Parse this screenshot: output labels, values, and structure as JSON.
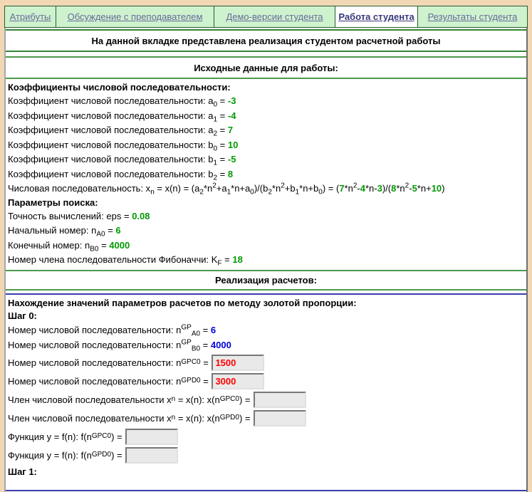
{
  "tabs": [
    {
      "label": "Атрибуты",
      "active": false
    },
    {
      "label": "Обсуждение с преподавателем",
      "active": false
    },
    {
      "label": "Демо-версии студента",
      "active": false
    },
    {
      "label": "Работа студента",
      "active": true
    },
    {
      "label": "Результаты студента",
      "active": false
    }
  ],
  "sections": {
    "intro_header": "На данной вкладке представлена реализация студентом расчетной работы",
    "inputs_header": "Исходные данные для работы:",
    "calc_header": "Реализация расчетов:"
  },
  "colors": {
    "page_frame": "#f1d7b4",
    "tab_background": "#cdf2cd",
    "tab_border": "#2a5c2a",
    "tab_link": "#6a6a9d",
    "rule_green": "#368336",
    "rule_blue": "#3a3aae",
    "value_green": "#009900",
    "value_blue": "#0000dd",
    "value_red": "#ff0000"
  },
  "initial_lines": [
    {
      "name": "coefficients-heading",
      "bold": true,
      "segments": [
        {
          "text": "Коэффициенты числовой последовательности:"
        }
      ]
    },
    {
      "name": "coeff-a0-line",
      "segments": [
        {
          "text": "Коэффициент числовой последовательности: a"
        },
        {
          "sub": "0"
        },
        {
          "text": " = "
        },
        {
          "val": "-3",
          "color": "green",
          "name": "coeff-a0-value"
        }
      ]
    },
    {
      "name": "coeff-a1-line",
      "segments": [
        {
          "text": "Коэффициент числовой последовательности: a"
        },
        {
          "sub": "1"
        },
        {
          "text": " = "
        },
        {
          "val": "-4",
          "color": "green",
          "name": "coeff-a1-value"
        }
      ]
    },
    {
      "name": "coeff-a2-line",
      "segments": [
        {
          "text": "Коэффициент числовой последовательности: a"
        },
        {
          "sub": "2"
        },
        {
          "text": " = "
        },
        {
          "val": "7",
          "color": "green",
          "name": "coeff-a2-value"
        }
      ]
    },
    {
      "name": "coeff-b0-line",
      "segments": [
        {
          "text": "Коэффициент числовой последовательности: b"
        },
        {
          "sub": "0"
        },
        {
          "text": " = "
        },
        {
          "val": "10",
          "color": "green",
          "name": "coeff-b0-value"
        }
      ]
    },
    {
      "name": "coeff-b1-line",
      "segments": [
        {
          "text": "Коэффициент числовой последовательности: b"
        },
        {
          "sub": "1"
        },
        {
          "text": " = "
        },
        {
          "val": "-5",
          "color": "green",
          "name": "coeff-b1-value"
        }
      ]
    },
    {
      "name": "coeff-b2-line",
      "segments": [
        {
          "text": "Коэффициент числовой последовательности: b"
        },
        {
          "sub": "2"
        },
        {
          "text": " = "
        },
        {
          "val": "8",
          "color": "green",
          "name": "coeff-b2-value"
        }
      ]
    },
    {
      "name": "sequence-formula-line",
      "segments": [
        {
          "text": "Числовая последовательность: x"
        },
        {
          "sub": "n"
        },
        {
          "text": " = x(n) = (a"
        },
        {
          "sub": "2"
        },
        {
          "text": "*n"
        },
        {
          "sup": "2"
        },
        {
          "text": "+a"
        },
        {
          "sub": "1"
        },
        {
          "text": "*n+a"
        },
        {
          "sub": "0"
        },
        {
          "text": ")/(b"
        },
        {
          "sub": "2"
        },
        {
          "text": "*n"
        },
        {
          "sup": "2"
        },
        {
          "text": "+b"
        },
        {
          "sub": "1"
        },
        {
          "text": "*n+b"
        },
        {
          "sub": "0"
        },
        {
          "text": ") = ("
        },
        {
          "val": "7",
          "color": "green",
          "name": "numerator-n2-coeff"
        },
        {
          "text": "*n"
        },
        {
          "sup": "2"
        },
        {
          "text": "-"
        },
        {
          "val": "4",
          "color": "green",
          "name": "numerator-n-coeff"
        },
        {
          "text": "*n-"
        },
        {
          "val": "3",
          "color": "green",
          "name": "numerator-const"
        },
        {
          "text": ")/("
        },
        {
          "val": "8",
          "color": "green",
          "name": "denominator-n2-coeff"
        },
        {
          "text": "*n"
        },
        {
          "sup": "2"
        },
        {
          "text": "-"
        },
        {
          "val": "5",
          "color": "green",
          "name": "denominator-n-coeff"
        },
        {
          "text": "*n+"
        },
        {
          "val": "10",
          "color": "green",
          "name": "denominator-const"
        },
        {
          "text": ")"
        }
      ]
    },
    {
      "name": "search-params-heading",
      "bold": true,
      "segments": [
        {
          "text": "Параметры поиска:"
        }
      ]
    },
    {
      "name": "eps-line",
      "segments": [
        {
          "text": "Точность вычислений: eps = "
        },
        {
          "val": "0.08",
          "color": "green",
          "name": "eps-value"
        }
      ]
    },
    {
      "name": "start-number-line",
      "segments": [
        {
          "text": "Начальный номер: n"
        },
        {
          "sub": "A0"
        },
        {
          "text": " = "
        },
        {
          "val": "6",
          "color": "green",
          "name": "n-a0-value"
        }
      ]
    },
    {
      "name": "end-number-line",
      "segments": [
        {
          "text": "Конечный номер: n"
        },
        {
          "sub": "B0"
        },
        {
          "text": " = "
        },
        {
          "val": "4000",
          "color": "green",
          "name": "n-b0-value"
        }
      ]
    },
    {
      "name": "fibonacci-number-line",
      "segments": [
        {
          "text": "Номер члена последовательности Фибоначчи: K"
        },
        {
          "sub": "F"
        },
        {
          "text": " = "
        },
        {
          "val": "18",
          "color": "green",
          "name": "k-f-value"
        }
      ]
    }
  ],
  "step_lines": [
    {
      "name": "golden-ratio-heading",
      "bold": true,
      "segments": [
        {
          "text": "Нахождение значений параметров расчетов по методу золотой пропорции:"
        }
      ]
    },
    {
      "name": "step-0-heading",
      "bold": true,
      "segments": [
        {
          "text": "Шаг 0:"
        }
      ]
    },
    {
      "name": "n-gp-a0-line",
      "segments": [
        {
          "text": "Номер числовой последовательности: n"
        },
        {
          "sup": "GP"
        },
        {
          "sub": "A0"
        },
        {
          "text": " = "
        },
        {
          "val": "6",
          "color": "blue",
          "name": "n-gp-a0-value"
        }
      ]
    },
    {
      "name": "n-gp-b0-line",
      "segments": [
        {
          "text": "Номер числовой последовательности: n"
        },
        {
          "sup": "GP"
        },
        {
          "sub": "B0"
        },
        {
          "text": " = "
        },
        {
          "val": "4000",
          "color": "blue",
          "name": "n-gp-b0-value"
        }
      ]
    },
    {
      "name": "n-gp-c0-line",
      "segments": [
        {
          "text": "Номер числовой последовательности: n"
        },
        {
          "sup": "GP"
        },
        {
          "sub": "C0"
        },
        {
          "text": " = "
        },
        {
          "input": true,
          "value": "1500",
          "color": "red",
          "name": "n-gp-c0-input"
        }
      ]
    },
    {
      "name": "n-gp-d0-line",
      "segments": [
        {
          "text": "Номер числовой последовательности: n"
        },
        {
          "sup": "GP"
        },
        {
          "sub": "D0"
        },
        {
          "text": " = "
        },
        {
          "input": true,
          "value": "3000",
          "color": "red",
          "name": "n-gp-d0-input"
        }
      ]
    },
    {
      "name": "x-n-gp-c0-line",
      "segments": [
        {
          "text": "Член числовой последовательности x"
        },
        {
          "sub": "n"
        },
        {
          "text": " = x(n): x(n"
        },
        {
          "sup": "GP"
        },
        {
          "sub": "C0"
        },
        {
          "text": ") = "
        },
        {
          "input": true,
          "value": "",
          "name": "x-n-gp-c0-input"
        }
      ]
    },
    {
      "name": "x-n-gp-d0-line",
      "segments": [
        {
          "text": "Член числовой последовательности x"
        },
        {
          "sub": "n"
        },
        {
          "text": " = x(n): x(n"
        },
        {
          "sup": "GP"
        },
        {
          "sub": "D0"
        },
        {
          "text": ") = "
        },
        {
          "input": true,
          "value": "",
          "name": "x-n-gp-d0-input"
        }
      ]
    },
    {
      "name": "f-n-gp-c0-line",
      "segments": [
        {
          "text": "Функция y = f(n): f(n"
        },
        {
          "sup": "GP"
        },
        {
          "sub": "C0"
        },
        {
          "text": ") = "
        },
        {
          "input": true,
          "value": "",
          "name": "f-n-gp-c0-input"
        }
      ]
    },
    {
      "name": "f-n-gp-d0-line",
      "segments": [
        {
          "text": "Функция y = f(n): f(n"
        },
        {
          "sup": "GP"
        },
        {
          "sub": "D0"
        },
        {
          "text": ") = "
        },
        {
          "input": true,
          "value": "",
          "name": "f-n-gp-d0-input"
        }
      ]
    },
    {
      "name": "step-1-heading",
      "bold": true,
      "segments": [
        {
          "text": "Шаг 1:"
        }
      ]
    }
  ]
}
